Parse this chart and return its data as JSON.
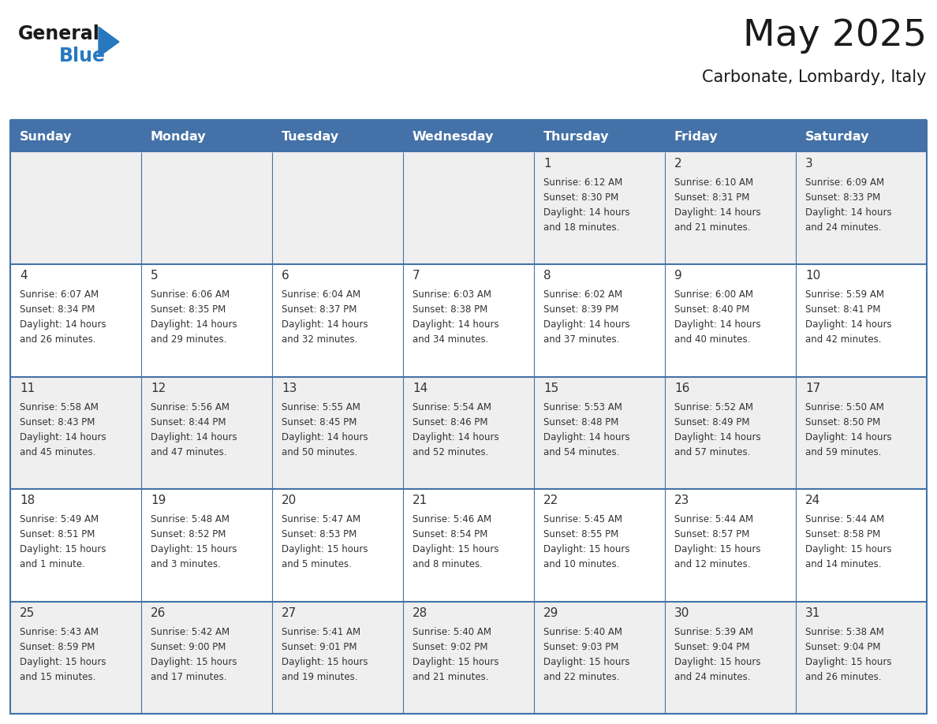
{
  "title": "May 2025",
  "subtitle": "Carbonate, Lombardy, Italy",
  "days_of_week": [
    "Sunday",
    "Monday",
    "Tuesday",
    "Wednesday",
    "Thursday",
    "Friday",
    "Saturday"
  ],
  "header_bg": "#4472A8",
  "header_text": "#FFFFFF",
  "row_bg_odd": "#EFEFEF",
  "row_bg_even": "#FFFFFF",
  "border_color": "#4472A8",
  "day_num_color": "#333333",
  "text_color": "#333333",
  "logo_general_color": "#1a1a1a",
  "logo_blue_color": "#2878C0",
  "calendar_data": [
    [
      null,
      null,
      null,
      null,
      {
        "day": 1,
        "sunrise": "6:12 AM",
        "sunset": "8:30 PM",
        "daylight_h": "14 hours",
        "daylight_m": "18 minutes."
      },
      {
        "day": 2,
        "sunrise": "6:10 AM",
        "sunset": "8:31 PM",
        "daylight_h": "14 hours",
        "daylight_m": "21 minutes."
      },
      {
        "day": 3,
        "sunrise": "6:09 AM",
        "sunset": "8:33 PM",
        "daylight_h": "14 hours",
        "daylight_m": "24 minutes."
      }
    ],
    [
      {
        "day": 4,
        "sunrise": "6:07 AM",
        "sunset": "8:34 PM",
        "daylight_h": "14 hours",
        "daylight_m": "26 minutes."
      },
      {
        "day": 5,
        "sunrise": "6:06 AM",
        "sunset": "8:35 PM",
        "daylight_h": "14 hours",
        "daylight_m": "29 minutes."
      },
      {
        "day": 6,
        "sunrise": "6:04 AM",
        "sunset": "8:37 PM",
        "daylight_h": "14 hours",
        "daylight_m": "32 minutes."
      },
      {
        "day": 7,
        "sunrise": "6:03 AM",
        "sunset": "8:38 PM",
        "daylight_h": "14 hours",
        "daylight_m": "34 minutes."
      },
      {
        "day": 8,
        "sunrise": "6:02 AM",
        "sunset": "8:39 PM",
        "daylight_h": "14 hours",
        "daylight_m": "37 minutes."
      },
      {
        "day": 9,
        "sunrise": "6:00 AM",
        "sunset": "8:40 PM",
        "daylight_h": "14 hours",
        "daylight_m": "40 minutes."
      },
      {
        "day": 10,
        "sunrise": "5:59 AM",
        "sunset": "8:41 PM",
        "daylight_h": "14 hours",
        "daylight_m": "42 minutes."
      }
    ],
    [
      {
        "day": 11,
        "sunrise": "5:58 AM",
        "sunset": "8:43 PM",
        "daylight_h": "14 hours",
        "daylight_m": "45 minutes."
      },
      {
        "day": 12,
        "sunrise": "5:56 AM",
        "sunset": "8:44 PM",
        "daylight_h": "14 hours",
        "daylight_m": "47 minutes."
      },
      {
        "day": 13,
        "sunrise": "5:55 AM",
        "sunset": "8:45 PM",
        "daylight_h": "14 hours",
        "daylight_m": "50 minutes."
      },
      {
        "day": 14,
        "sunrise": "5:54 AM",
        "sunset": "8:46 PM",
        "daylight_h": "14 hours",
        "daylight_m": "52 minutes."
      },
      {
        "day": 15,
        "sunrise": "5:53 AM",
        "sunset": "8:48 PM",
        "daylight_h": "14 hours",
        "daylight_m": "54 minutes."
      },
      {
        "day": 16,
        "sunrise": "5:52 AM",
        "sunset": "8:49 PM",
        "daylight_h": "14 hours",
        "daylight_m": "57 minutes."
      },
      {
        "day": 17,
        "sunrise": "5:50 AM",
        "sunset": "8:50 PM",
        "daylight_h": "14 hours",
        "daylight_m": "59 minutes."
      }
    ],
    [
      {
        "day": 18,
        "sunrise": "5:49 AM",
        "sunset": "8:51 PM",
        "daylight_h": "15 hours",
        "daylight_m": "1 minute."
      },
      {
        "day": 19,
        "sunrise": "5:48 AM",
        "sunset": "8:52 PM",
        "daylight_h": "15 hours",
        "daylight_m": "3 minutes."
      },
      {
        "day": 20,
        "sunrise": "5:47 AM",
        "sunset": "8:53 PM",
        "daylight_h": "15 hours",
        "daylight_m": "5 minutes."
      },
      {
        "day": 21,
        "sunrise": "5:46 AM",
        "sunset": "8:54 PM",
        "daylight_h": "15 hours",
        "daylight_m": "8 minutes."
      },
      {
        "day": 22,
        "sunrise": "5:45 AM",
        "sunset": "8:55 PM",
        "daylight_h": "15 hours",
        "daylight_m": "10 minutes."
      },
      {
        "day": 23,
        "sunrise": "5:44 AM",
        "sunset": "8:57 PM",
        "daylight_h": "15 hours",
        "daylight_m": "12 minutes."
      },
      {
        "day": 24,
        "sunrise": "5:44 AM",
        "sunset": "8:58 PM",
        "daylight_h": "15 hours",
        "daylight_m": "14 minutes."
      }
    ],
    [
      {
        "day": 25,
        "sunrise": "5:43 AM",
        "sunset": "8:59 PM",
        "daylight_h": "15 hours",
        "daylight_m": "15 minutes."
      },
      {
        "day": 26,
        "sunrise": "5:42 AM",
        "sunset": "9:00 PM",
        "daylight_h": "15 hours",
        "daylight_m": "17 minutes."
      },
      {
        "day": 27,
        "sunrise": "5:41 AM",
        "sunset": "9:01 PM",
        "daylight_h": "15 hours",
        "daylight_m": "19 minutes."
      },
      {
        "day": 28,
        "sunrise": "5:40 AM",
        "sunset": "9:02 PM",
        "daylight_h": "15 hours",
        "daylight_m": "21 minutes."
      },
      {
        "day": 29,
        "sunrise": "5:40 AM",
        "sunset": "9:03 PM",
        "daylight_h": "15 hours",
        "daylight_m": "22 minutes."
      },
      {
        "day": 30,
        "sunrise": "5:39 AM",
        "sunset": "9:04 PM",
        "daylight_h": "15 hours",
        "daylight_m": "24 minutes."
      },
      {
        "day": 31,
        "sunrise": "5:38 AM",
        "sunset": "9:04 PM",
        "daylight_h": "15 hours",
        "daylight_m": "26 minutes."
      }
    ]
  ]
}
